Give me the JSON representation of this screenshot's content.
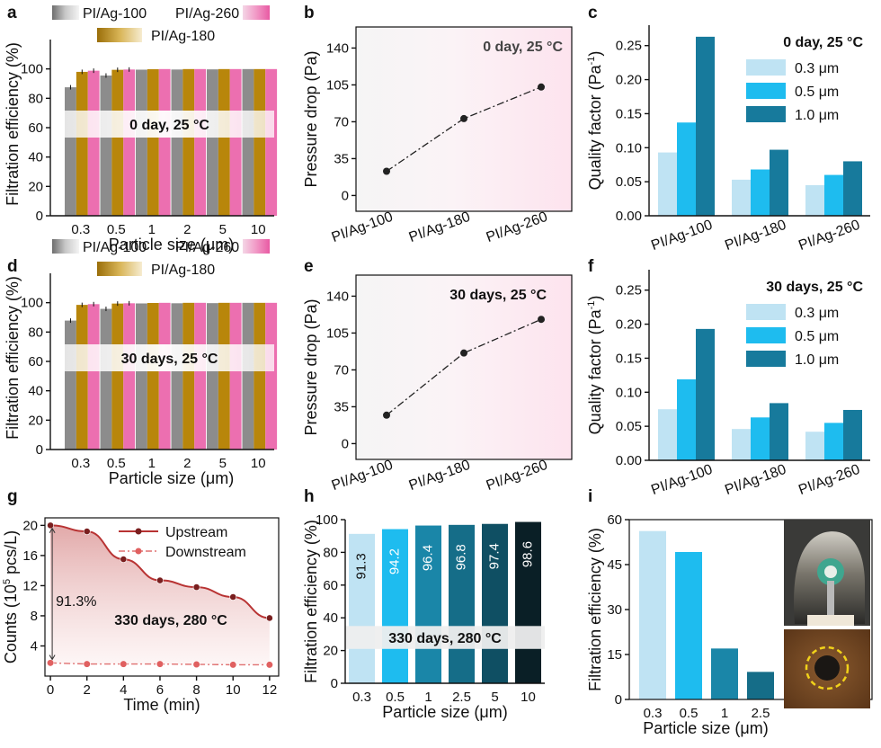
{
  "panel_labels": {
    "a": "a",
    "b": "b",
    "c": "c",
    "d": "d",
    "e": "e",
    "f": "f",
    "g": "g",
    "h": "h",
    "i": "i"
  },
  "colors": {
    "gray": "#8c8c8c",
    "gold": "#b8860b",
    "pink": "#ec6fb0",
    "q03": "#bfe3f3",
    "q05": "#1ebcef",
    "q10": "#177a9c",
    "h_030": "#bfe3f3",
    "h_050": "#1ebcef",
    "h_1": "#1a86a8",
    "h_25": "#156d88",
    "h_5": "#0f4f63",
    "h_10": "#0a1f26",
    "upstream": "#b83333",
    "downstream": "#e07070"
  },
  "chart_data": [
    {
      "id": "a",
      "type": "bar",
      "categories": [
        "0.3",
        "0.5",
        "1",
        "2",
        "5",
        "10"
      ],
      "series": [
        {
          "name": "PI/Ag-100",
          "values": [
            87.5,
            95.5,
            99.5,
            99.6,
            99.7,
            99.9
          ]
        },
        {
          "name": "PI/Ag-180",
          "values": [
            98.0,
            99.4,
            99.8,
            99.9,
            99.9,
            99.9
          ]
        },
        {
          "name": "PI/Ag-260",
          "values": [
            98.8,
            99.6,
            99.9,
            99.9,
            99.9,
            99.9
          ]
        }
      ],
      "xlabel": "Particle size (μm)",
      "ylabel": "Filtration efficiency (%)",
      "ylim": [
        0,
        120
      ],
      "yticks": [
        "0",
        "20",
        "40",
        "60",
        "80",
        "100"
      ],
      "annotation": "0 day, 25 °C"
    },
    {
      "id": "b",
      "type": "line",
      "categories": [
        "PI/Ag-100",
        "PI/Ag-180",
        "PI/Ag-260"
      ],
      "values": [
        23,
        73,
        103
      ],
      "ylabel": "Pressure drop (Pa)",
      "ylim": [
        -15,
        160
      ],
      "yticks": [
        "0",
        "35",
        "70",
        "105",
        "140"
      ],
      "annotation": "0 day, 25 °C"
    },
    {
      "id": "c",
      "type": "bar",
      "categories": [
        "PI/Ag-100",
        "PI/Ag-180",
        "PI/Ag-260"
      ],
      "series": [
        {
          "name": "0.3 μm",
          "values": [
            0.093,
            0.053,
            0.045
          ]
        },
        {
          "name": "0.5 μm",
          "values": [
            0.137,
            0.068,
            0.06
          ]
        },
        {
          "name": "1.0 μm",
          "values": [
            0.263,
            0.097,
            0.08
          ]
        }
      ],
      "ylabel": "Quality factor (Pa",
      "ylabel_sup": "-1",
      "ylabel_end": ")",
      "ylim": [
        0,
        0.28
      ],
      "yticks": [
        "0.00",
        "0.05",
        "0.10",
        "0.15",
        "0.20",
        "0.25"
      ],
      "annotation": "0 day, 25 °C"
    },
    {
      "id": "d",
      "type": "bar",
      "categories": [
        "0.3",
        "0.5",
        "1",
        "2",
        "5",
        "10"
      ],
      "series": [
        {
          "name": "PI/Ag-100",
          "values": [
            87.8,
            95.8,
            99.5,
            99.6,
            99.7,
            99.9
          ]
        },
        {
          "name": "PI/Ag-180",
          "values": [
            98.5,
            99.4,
            99.8,
            99.9,
            99.9,
            99.9
          ]
        },
        {
          "name": "PI/Ag-260",
          "values": [
            99.0,
            99.6,
            99.9,
            99.9,
            99.9,
            99.9
          ]
        }
      ],
      "xlabel": "Particle size (μm)",
      "ylabel": "Filtration efficiency (%)",
      "ylim": [
        0,
        120
      ],
      "yticks": [
        "0",
        "20",
        "40",
        "60",
        "80",
        "100"
      ],
      "annotation": "30 days, 25 °C"
    },
    {
      "id": "e",
      "type": "line",
      "categories": [
        "PI/Ag-100",
        "PI/Ag-180",
        "PI/Ag-260"
      ],
      "values": [
        27,
        86,
        118
      ],
      "ylabel": "Pressure drop (Pa)",
      "ylim": [
        -15,
        160
      ],
      "yticks": [
        "0",
        "35",
        "70",
        "105",
        "140"
      ],
      "annotation": "30 days, 25 °C"
    },
    {
      "id": "f",
      "type": "bar",
      "categories": [
        "PI/Ag-100",
        "PI/Ag-180",
        "PI/Ag-260"
      ],
      "series": [
        {
          "name": "0.3 μm",
          "values": [
            0.075,
            0.046,
            0.042
          ]
        },
        {
          "name": "0.5 μm",
          "values": [
            0.119,
            0.063,
            0.055
          ]
        },
        {
          "name": "1.0 μm",
          "values": [
            0.193,
            0.084,
            0.074
          ]
        }
      ],
      "ylabel": "Quality factor (Pa",
      "ylabel_sup": "-1",
      "ylabel_end": ")",
      "ylim": [
        0,
        0.28
      ],
      "yticks": [
        "0.00",
        "0.05",
        "0.10",
        "0.15",
        "0.20",
        "0.25"
      ],
      "annotation": "30 days, 25 °C"
    },
    {
      "id": "g",
      "type": "line",
      "x": [
        0,
        2,
        4,
        6,
        8,
        10,
        12
      ],
      "series": [
        {
          "name": "Upstream",
          "values": [
            20.0,
            19.2,
            15.5,
            12.7,
            11.8,
            10.5,
            7.7
          ]
        },
        {
          "name": "Downstream",
          "values": [
            1.75,
            1.6,
            1.6,
            1.6,
            1.55,
            1.5,
            1.5
          ]
        }
      ],
      "xlabel": "Time (min)",
      "ylabel": "Counts (10",
      "ylabel_sup": "5",
      "ylabel_end": " pcs/L)",
      "xlim": [
        -0.3,
        12.5
      ],
      "ylim": [
        0,
        21
      ],
      "xticks": [
        "0",
        "2",
        "4",
        "6",
        "8",
        "10",
        "12"
      ],
      "yticks": [
        "4",
        "8",
        "12",
        "16",
        "20"
      ],
      "annotation": "330 days, 280 °C",
      "efficiency_label": "91.3%"
    },
    {
      "id": "h",
      "type": "bar",
      "categories": [
        "0.3",
        "0.5",
        "1",
        "2.5",
        "5",
        "10"
      ],
      "values": [
        91.3,
        94.2,
        96.4,
        96.8,
        97.4,
        98.6
      ],
      "data_labels": [
        "91.3",
        "94.2",
        "96.4",
        "96.8",
        "97.4",
        "98.6"
      ],
      "xlabel": "Particle size (μm)",
      "ylabel": "Filtration efficiency (%)",
      "ylim": [
        0,
        100
      ],
      "yticks": [
        "0",
        "20",
        "40",
        "60",
        "80",
        "100"
      ],
      "annotation": "330 days, 280 °C"
    },
    {
      "id": "i",
      "type": "bar",
      "categories": [
        "0.3",
        "0.5",
        "1",
        "2.5"
      ],
      "values": [
        56.2,
        49.2,
        17.0,
        9.2
      ],
      "xlabel": "Particle size (μm)",
      "ylabel": "Filtration efficiency (%)",
      "ylim": [
        0,
        60
      ],
      "yticks": [
        "0",
        "15",
        "30",
        "45",
        "60"
      ]
    }
  ]
}
